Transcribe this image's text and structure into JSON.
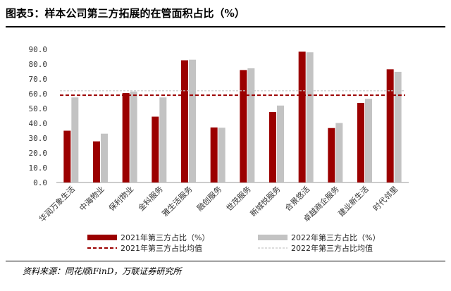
{
  "header": {
    "title": "图表5：样本公司第三方拓展的在管面积占比（%）"
  },
  "footer": {
    "source": "资料来源：同花顺iFinD，万联证券研究所"
  },
  "colors": {
    "series2021": "#9b0000",
    "series2022": "#c3c3c3",
    "avg2021": "#9b0000",
    "avg2022": "#c8c8c8"
  },
  "chart_data": {
    "type": "bar",
    "categories": [
      "华润万象生活",
      "中海物业",
      "保利物业",
      "金科服务",
      "雅生活服务",
      "融创服务",
      "世茂服务",
      "新城悦服务",
      "合景悠活",
      "卓越商企服务",
      "建业新生活",
      "时代邻里"
    ],
    "series": [
      {
        "name": "2021年第三方占比（%）",
        "values": [
          35.0,
          27.8,
          60.5,
          44.5,
          82.6,
          37.2,
          76.0,
          47.6,
          88.4,
          36.8,
          53.8,
          76.5
        ]
      },
      {
        "name": "2022年第三方占比（%）",
        "values": [
          57.5,
          33.0,
          61.5,
          57.5,
          83.0,
          37.0,
          77.2,
          52.0,
          88.0,
          40.2,
          56.5,
          74.8
        ]
      }
    ],
    "averages": [
      {
        "name": "2021年第三方占比均值",
        "value": 59.0,
        "style": "dashed"
      },
      {
        "name": "2022年第三方占比均值",
        "value": 62.0,
        "style": "dashed"
      }
    ],
    "ylim": [
      0,
      90
    ],
    "ytick_labels": [
      "0.0",
      "10.0",
      "20.0",
      "30.0",
      "40.0",
      "50.0",
      "60.0",
      "70.0",
      "80.0",
      "90.0"
    ],
    "grid": false,
    "legend_position": "bottom"
  }
}
